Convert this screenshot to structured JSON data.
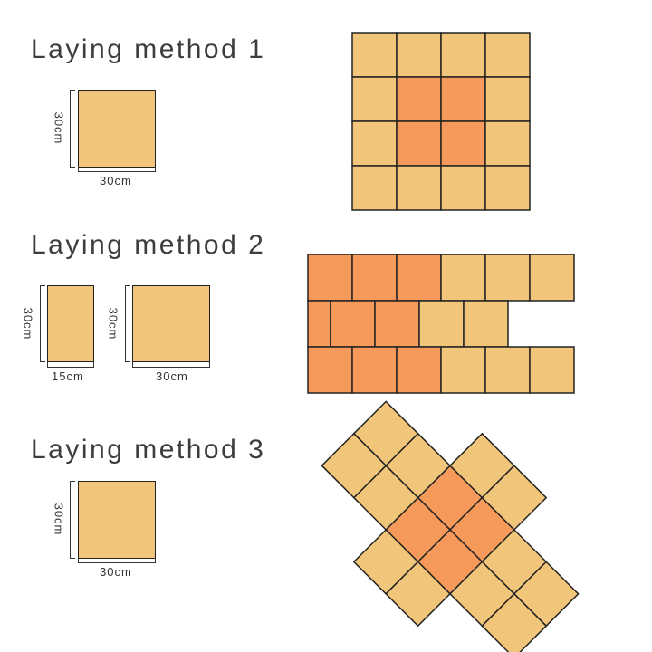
{
  "colors": {
    "light_tile": "#f2c67a",
    "dark_tile": "#f59a5a",
    "grout": "#222222"
  },
  "methods": [
    {
      "title": "Laying method 1",
      "tile": {
        "height_label": "30cm",
        "width_label": "30cm"
      }
    },
    {
      "title": "Laying method 2",
      "tile_a": {
        "height_label": "30cm",
        "width_label": "15cm"
      },
      "tile_b": {
        "height_label": "30cm",
        "width_label": "30cm"
      }
    },
    {
      "title": "Laying method 3",
      "tile": {
        "height_label": "30cm",
        "width_label": "30cm"
      }
    }
  ]
}
